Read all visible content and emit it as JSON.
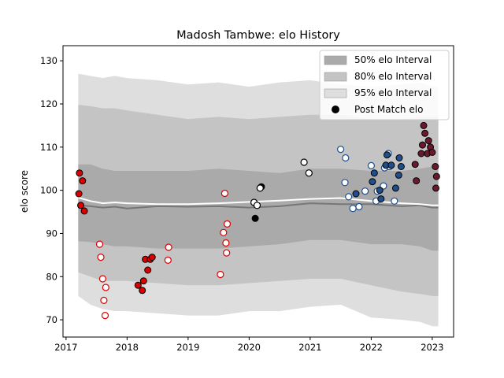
{
  "chart_data": {
    "type": "scatter",
    "title": "Madosh Tambwe: elo History",
    "xlabel": "",
    "ylabel": "elo score",
    "xlim": [
      2016.95,
      2023.35
    ],
    "ylim": [
      66,
      133.5
    ],
    "x_ticks": [
      2017,
      2018,
      2019,
      2020,
      2021,
      2022,
      2023
    ],
    "x_tick_labels": [
      "2017",
      "2018",
      "2019",
      "2020",
      "2021",
      "2022",
      "2023"
    ],
    "y_ticks": [
      70,
      80,
      90,
      100,
      110,
      120,
      130
    ],
    "y_tick_labels": [
      "70",
      "80",
      "90",
      "100",
      "110",
      "120",
      "130"
    ],
    "grid": false,
    "legend_position": "top-right",
    "legend": [
      {
        "label": "50% elo Interval",
        "kind": "band",
        "color": "#aaaaaa"
      },
      {
        "label": "80% elo Interval",
        "kind": "band",
        "color": "#c4c4c4"
      },
      {
        "label": "95% elo Interval",
        "kind": "band",
        "color": "#dedede"
      },
      {
        "label": "Post Match elo",
        "kind": "marker",
        "color": "#000000"
      }
    ],
    "bands": {
      "x": [
        2017.2,
        2017.4,
        2017.6,
        2017.8,
        2018.0,
        2018.5,
        2019.0,
        2019.5,
        2020.0,
        2020.5,
        2021.0,
        2021.5,
        2022.0,
        2022.5,
        2022.8,
        2023.0,
        2023.1
      ],
      "p95_upper": [
        127.0,
        126.5,
        126.0,
        126.5,
        126.0,
        125.5,
        124.5,
        125.0,
        124.0,
        125.0,
        125.5,
        124.5,
        124.0,
        124.5,
        125.0,
        124.0,
        124.0
      ],
      "p80_upper": [
        119.8,
        119.5,
        119.0,
        119.0,
        118.5,
        117.5,
        116.5,
        117.0,
        116.5,
        117.0,
        117.5,
        117.5,
        116.5,
        116.5,
        117.0,
        117.0,
        117.0
      ],
      "p50_upper": [
        106.0,
        106.0,
        105.0,
        104.5,
        104.5,
        104.5,
        104.5,
        105.0,
        104.5,
        104.0,
        105.0,
        105.0,
        104.5,
        104.5,
        105.0,
        105.5,
        105.5
      ],
      "p50_lower": [
        88.2,
        88.0,
        87.5,
        87.0,
        87.0,
        86.5,
        86.5,
        86.5,
        87.0,
        87.5,
        88.5,
        88.5,
        87.5,
        87.5,
        87.0,
        86.0,
        86.0
      ],
      "p80_lower": [
        81.0,
        80.0,
        79.0,
        79.0,
        79.0,
        78.5,
        78.0,
        78.0,
        78.5,
        79.0,
        79.5,
        79.5,
        78.0,
        76.5,
        76.0,
        75.5,
        75.5
      ],
      "p95_lower": [
        75.5,
        73.5,
        72.5,
        72.0,
        72.0,
        71.5,
        71.0,
        71.0,
        72.0,
        72.0,
        73.0,
        73.5,
        70.5,
        70.0,
        69.5,
        68.5,
        68.5
      ]
    },
    "mean_line": {
      "x": [
        2017.2,
        2017.4,
        2017.6,
        2017.8,
        2018.0,
        2018.5,
        2019.0,
        2019.5,
        2020.0,
        2020.5,
        2021.0,
        2021.5,
        2022.0,
        2022.5,
        2022.8,
        2023.0,
        2023.1
      ],
      "y": [
        96.5,
        96.3,
        96.0,
        96.2,
        95.8,
        96.3,
        96.2,
        96.3,
        96.0,
        96.3,
        97.0,
        96.8,
        96.8,
        96.3,
        96.5,
        96.0,
        96.0
      ],
      "color": "#777777"
    },
    "median_line": {
      "x": [
        2017.2,
        2017.4,
        2017.6,
        2017.8,
        2018.0,
        2018.5,
        2019.0,
        2019.5,
        2020.0,
        2020.5,
        2021.0,
        2021.5,
        2022.0,
        2022.5,
        2022.8,
        2023.0,
        2023.1
      ],
      "y": [
        98.3,
        97.5,
        97.0,
        97.2,
        97.0,
        96.8,
        96.8,
        97.0,
        97.3,
        97.6,
        98.0,
        98.2,
        97.5,
        97.0,
        96.8,
        96.5,
        96.5
      ],
      "color": "#ffffff"
    },
    "series": [
      {
        "color": "#dd0000",
        "filled": true,
        "points": [
          [
            2017.22,
            104.0
          ],
          [
            2017.27,
            102.2
          ],
          [
            2017.21,
            99.2
          ],
          [
            2017.24,
            96.5
          ],
          [
            2017.3,
            95.2
          ],
          [
            2018.18,
            78.0
          ],
          [
            2018.25,
            76.8
          ],
          [
            2018.27,
            79.0
          ],
          [
            2018.3,
            84.0
          ],
          [
            2018.34,
            81.5
          ],
          [
            2018.38,
            84.0
          ],
          [
            2018.41,
            84.5
          ]
        ]
      },
      {
        "color": "#dd0000",
        "filled": false,
        "points": [
          [
            2017.55,
            87.5
          ],
          [
            2017.57,
            84.5
          ],
          [
            2017.6,
            79.5
          ],
          [
            2017.65,
            77.5
          ],
          [
            2017.62,
            74.5
          ],
          [
            2017.64,
            71.0
          ],
          [
            2018.68,
            86.8
          ],
          [
            2018.67,
            83.8
          ],
          [
            2019.53,
            80.5
          ],
          [
            2019.58,
            90.2
          ],
          [
            2019.62,
            87.8
          ],
          [
            2019.63,
            85.5
          ],
          [
            2019.64,
            92.2
          ],
          [
            2019.6,
            99.3
          ]
        ]
      },
      {
        "color": "#000000",
        "filled": true,
        "points": [
          [
            2020.1,
            93.5
          ],
          [
            2020.2,
            100.8
          ]
        ]
      },
      {
        "color": "#000000",
        "filled": false,
        "points": [
          [
            2020.08,
            97.2
          ],
          [
            2020.13,
            96.5
          ],
          [
            2020.18,
            100.5
          ],
          [
            2020.9,
            106.5
          ],
          [
            2020.98,
            104.0
          ]
        ]
      },
      {
        "color": "#1f4e8c",
        "filled": false,
        "points": [
          [
            2021.5,
            109.5
          ],
          [
            2021.58,
            107.5
          ],
          [
            2021.57,
            101.8
          ],
          [
            2021.63,
            98.5
          ],
          [
            2021.7,
            95.8
          ],
          [
            2021.8,
            96.2
          ],
          [
            2021.9,
            99.8
          ],
          [
            2022.0,
            105.7
          ],
          [
            2022.08,
            97.5
          ],
          [
            2022.1,
            99.8
          ],
          [
            2022.2,
            101.0
          ],
          [
            2022.22,
            105.2
          ],
          [
            2022.28,
            108.5
          ],
          [
            2022.3,
            105.5
          ],
          [
            2022.38,
            97.5
          ]
        ]
      },
      {
        "color": "#1f4e8c",
        "filled": true,
        "points": [
          [
            2021.75,
            99.2
          ],
          [
            2022.02,
            102.0
          ],
          [
            2022.05,
            104.0
          ],
          [
            2022.14,
            100.0
          ],
          [
            2022.16,
            98.0
          ],
          [
            2022.24,
            105.8
          ],
          [
            2022.26,
            108.2
          ],
          [
            2022.33,
            105.8
          ],
          [
            2022.4,
            100.5
          ],
          [
            2022.45,
            103.5
          ],
          [
            2022.46,
            107.5
          ],
          [
            2022.49,
            105.5
          ]
        ]
      },
      {
        "color": "#6b1a2e",
        "filled": true,
        "points": [
          [
            2022.72,
            106.0
          ],
          [
            2022.74,
            102.2
          ],
          [
            2022.82,
            108.5
          ],
          [
            2022.84,
            110.5
          ],
          [
            2022.86,
            115.0
          ],
          [
            2022.88,
            113.2
          ],
          [
            2022.92,
            108.5
          ],
          [
            2022.94,
            111.5
          ],
          [
            2022.97,
            110.0
          ],
          [
            2023.0,
            108.8
          ],
          [
            2023.05,
            105.5
          ],
          [
            2023.07,
            103.2
          ],
          [
            2023.06,
            100.5
          ]
        ]
      }
    ]
  }
}
